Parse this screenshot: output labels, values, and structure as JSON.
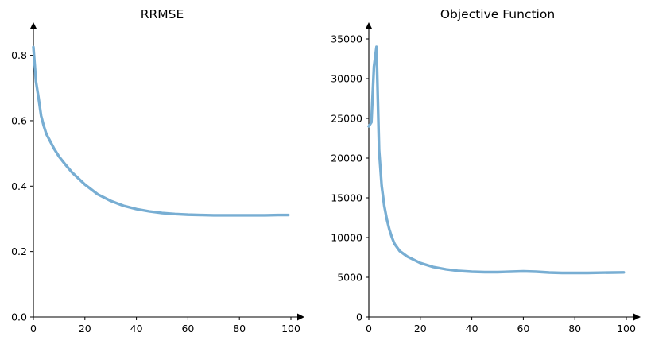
{
  "chart_data": [
    {
      "type": "line",
      "title": "RRMSE",
      "xlabel": "",
      "ylabel": "",
      "xlim": [
        0,
        100
      ],
      "ylim": [
        0,
        0.85
      ],
      "xticks": [
        0,
        20,
        40,
        60,
        80,
        100
      ],
      "yticks": [
        0.0,
        0.2,
        0.4,
        0.6,
        0.8
      ],
      "ytick_labels": [
        "0.0",
        "0.2",
        "0.4",
        "0.6",
        "0.8"
      ],
      "grid": false,
      "color": "#78aed3",
      "series": [
        {
          "x": [
            0,
            1,
            2,
            3,
            4,
            5,
            6,
            8,
            10,
            12,
            15,
            20,
            25,
            30,
            35,
            40,
            45,
            50,
            55,
            60,
            65,
            70,
            75,
            80,
            85,
            90,
            95,
            99
          ],
          "y": [
            0.825,
            0.72,
            0.67,
            0.615,
            0.585,
            0.56,
            0.545,
            0.515,
            0.49,
            0.47,
            0.442,
            0.405,
            0.375,
            0.355,
            0.34,
            0.33,
            0.323,
            0.318,
            0.315,
            0.313,
            0.312,
            0.311,
            0.311,
            0.311,
            0.311,
            0.311,
            0.312,
            0.312
          ]
        }
      ]
    },
    {
      "type": "line",
      "title": "Objective Function",
      "xlabel": "",
      "ylabel": "",
      "xlim": [
        0,
        100
      ],
      "ylim": [
        0,
        35000
      ],
      "xticks": [
        0,
        20,
        40,
        60,
        80,
        100
      ],
      "yticks": [
        0,
        5000,
        10000,
        15000,
        20000,
        25000,
        30000,
        35000
      ],
      "ytick_labels": [
        "0",
        "5000",
        "10000",
        "15000",
        "20000",
        "25000",
        "30000",
        "35000"
      ],
      "grid": false,
      "color": "#78aed3",
      "series": [
        {
          "x": [
            0,
            1,
            2,
            3,
            4,
            5,
            6,
            7,
            8,
            9,
            10,
            12,
            15,
            20,
            25,
            30,
            35,
            40,
            45,
            50,
            55,
            60,
            65,
            70,
            75,
            80,
            85,
            90,
            95,
            99
          ],
          "y": [
            24000,
            24500,
            31500,
            34000,
            21000,
            16500,
            14000,
            12300,
            11000,
            10000,
            9200,
            8300,
            7600,
            6800,
            6300,
            6000,
            5800,
            5700,
            5650,
            5650,
            5700,
            5750,
            5700,
            5600,
            5550,
            5550,
            5550,
            5580,
            5600,
            5620
          ]
        }
      ]
    }
  ]
}
